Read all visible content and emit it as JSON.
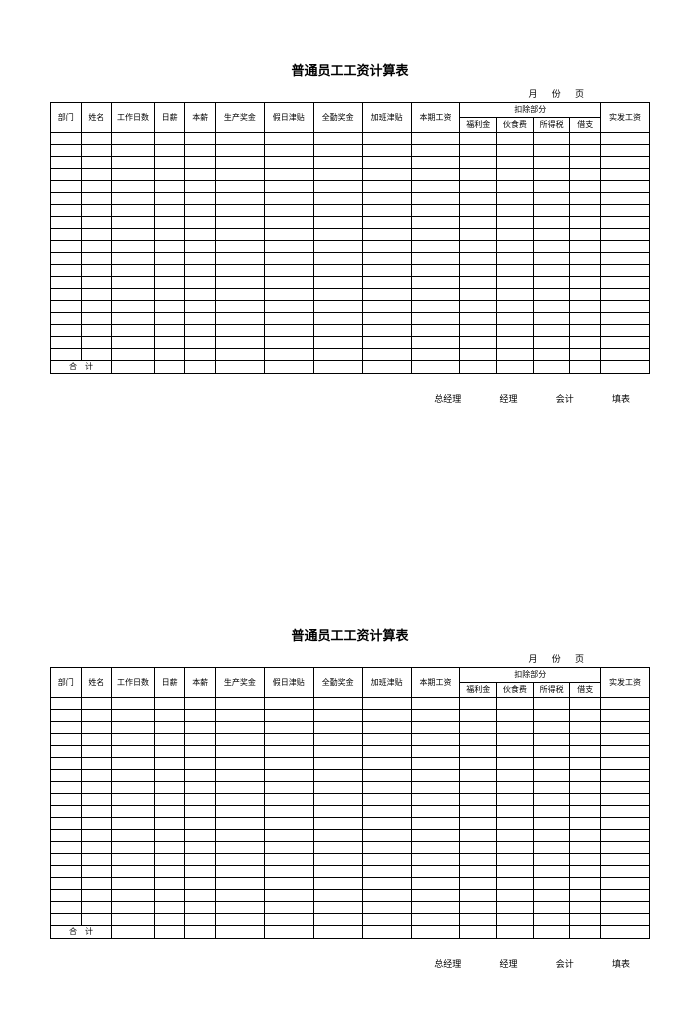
{
  "title": "普通员工工资计算表",
  "top_right": "月 份 页",
  "headers": {
    "dept": "部门",
    "name": "姓名",
    "work_days": "工作日数",
    "daily_wage": "日薪",
    "base_salary": "本薪",
    "prod_bonus": "生产奖金",
    "holiday_allow": "假日津贴",
    "full_attend": "全勤奖金",
    "overtime": "加班津贴",
    "period_salary": "本期工资",
    "deduct_group": "扣除部分",
    "deduct_welfare": "福利金",
    "deduct_meal": "伙食费",
    "deduct_tax": "所得税",
    "deduct_loan": "借支",
    "net_salary": "实发工资"
  },
  "total_label": "合　计",
  "footer": {
    "gm": "总经理",
    "mgr": "经理",
    "acct": "会计",
    "filler": "填表"
  },
  "style": {
    "empty_rows": 19,
    "border_color": "#000000",
    "background_color": "#ffffff",
    "title_fontsize": 13,
    "cell_fontsize": 8,
    "footer_fontsize": 9
  }
}
